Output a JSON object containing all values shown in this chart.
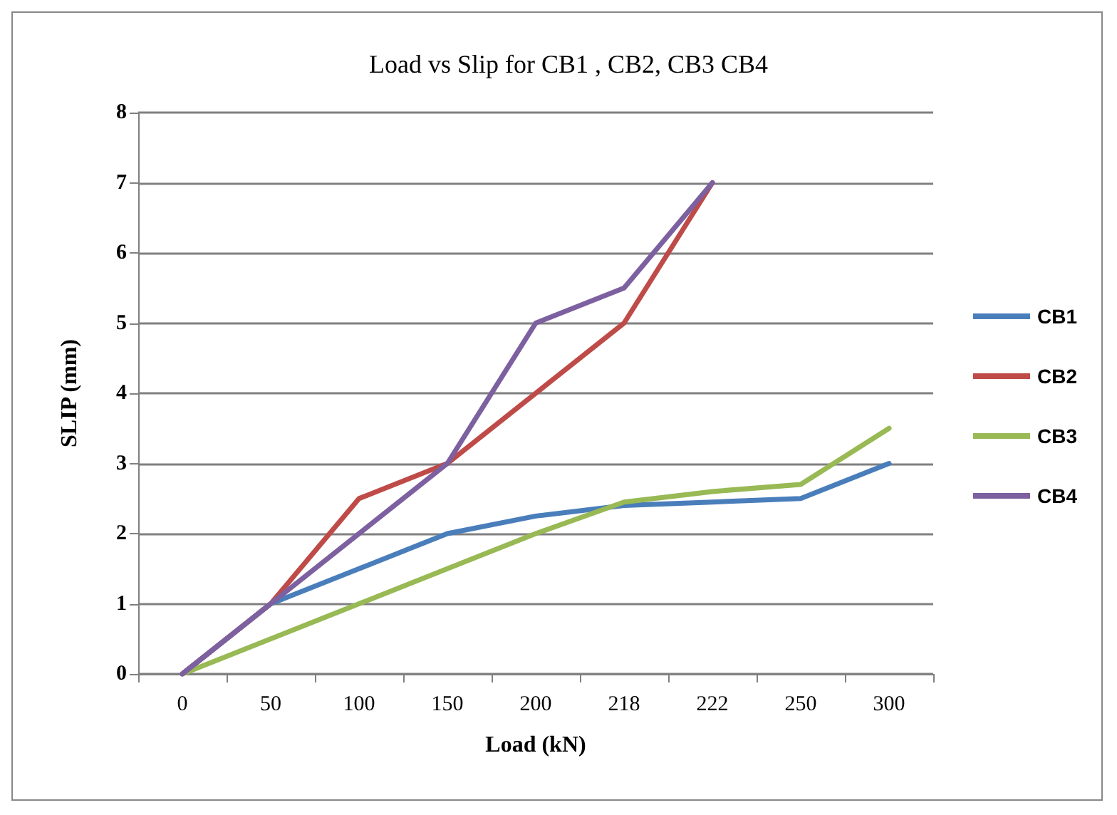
{
  "chart_data": {
    "type": "line",
    "title": "Load vs Slip for CB1 , CB2, CB3 CB4",
    "xlabel": "Load (kN)",
    "ylabel": "SLIP (mm)",
    "categories": [
      "0",
      "50",
      "100",
      "150",
      "200",
      "218",
      "222",
      "250",
      "300"
    ],
    "series": [
      {
        "name": "CB1",
        "color": "#4a7ebb",
        "values": [
          0,
          1,
          1.5,
          2,
          2.25,
          2.4,
          2.45,
          2.5,
          3
        ]
      },
      {
        "name": "CB2",
        "color": "#be4b48",
        "values": [
          0,
          1,
          2.5,
          3,
          4,
          5,
          7,
          null,
          null
        ]
      },
      {
        "name": "CB3",
        "color": "#98b954",
        "values": [
          0,
          0.5,
          1,
          1.5,
          2,
          2.45,
          2.6,
          2.7,
          3.5
        ]
      },
      {
        "name": "CB4",
        "color": "#7d60a0",
        "values": [
          0,
          1,
          2,
          3,
          5,
          5.5,
          7,
          null,
          null
        ]
      }
    ],
    "ylim": [
      0,
      8
    ],
    "yticks": [
      0,
      1,
      2,
      3,
      4,
      5,
      6,
      7,
      8
    ],
    "grid": "y",
    "legend": "right",
    "marker": "none",
    "line_style": "solid"
  }
}
